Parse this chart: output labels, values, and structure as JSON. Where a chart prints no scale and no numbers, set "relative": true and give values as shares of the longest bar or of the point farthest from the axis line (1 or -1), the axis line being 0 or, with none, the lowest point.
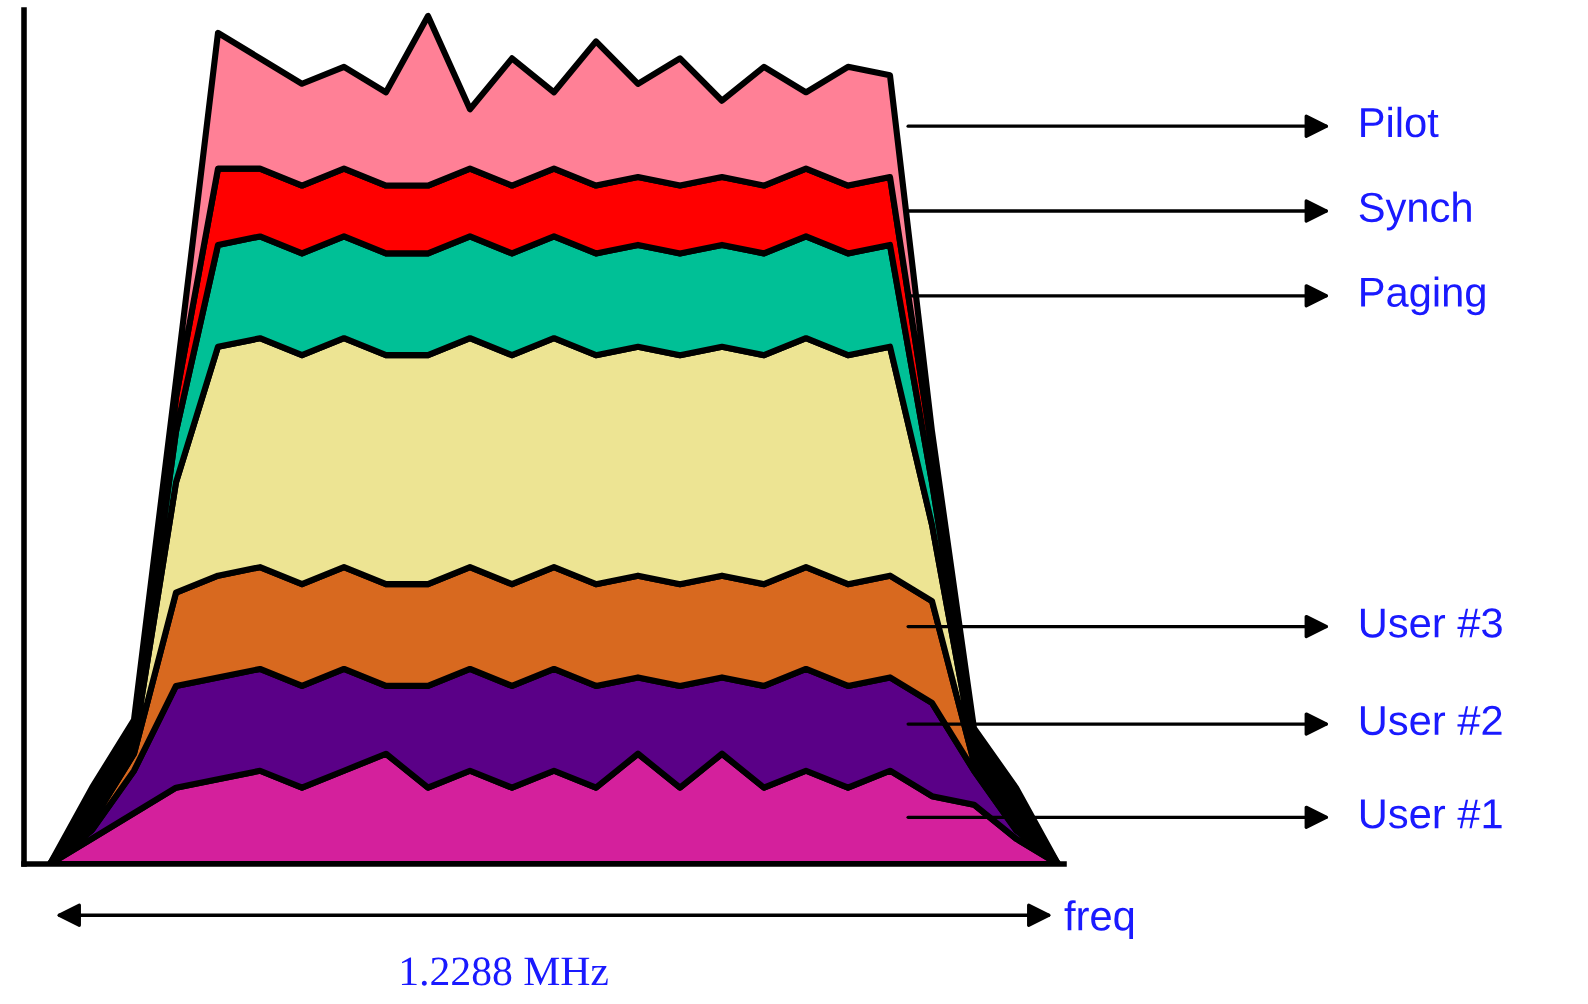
{
  "chart_data": {
    "type": "area",
    "stacked": true,
    "relative": true,
    "tick_labels": false,
    "xlabel": "freq",
    "annotations": [
      "1.2288 MHz"
    ],
    "categories": [
      null,
      null,
      null,
      null,
      null,
      null,
      null,
      null,
      null,
      null,
      null,
      null,
      null,
      null,
      null,
      null,
      null,
      null,
      null,
      null,
      null,
      null,
      null,
      null,
      null
    ],
    "series": [
      {
        "name": "User #1",
        "color": "#d4209c",
        "values": [
          0,
          0.03,
          0.06,
          0.09,
          0.1,
          0.11,
          0.09,
          0.11,
          0.13,
          0.09,
          0.11,
          0.09,
          0.11,
          0.09,
          0.13,
          0.09,
          0.13,
          0.09,
          0.11,
          0.09,
          0.11,
          0.08,
          0.07,
          0.03,
          0
        ]
      },
      {
        "name": "User #2",
        "color": "#5a0087",
        "values": [
          0,
          0.01,
          0.05,
          0.12,
          0.12,
          0.12,
          0.12,
          0.12,
          0.08,
          0.12,
          0.12,
          0.12,
          0.12,
          0.12,
          0.09,
          0.12,
          0.09,
          0.12,
          0.12,
          0.12,
          0.11,
          0.11,
          0.04,
          0.01,
          0
        ]
      },
      {
        "name": "User #3",
        "color": "#d8691f",
        "values": [
          0,
          0.01,
          0.02,
          0.11,
          0.12,
          0.12,
          0.12,
          0.12,
          0.12,
          0.12,
          0.12,
          0.12,
          0.12,
          0.12,
          0.12,
          0.12,
          0.12,
          0.12,
          0.12,
          0.12,
          0.12,
          0.12,
          0.01,
          0.01,
          0
        ]
      },
      {
        "color": "#ede493",
        "values": [
          0,
          0.01,
          0.01,
          0.13,
          0.27,
          0.27,
          0.27,
          0.27,
          0.27,
          0.27,
          0.27,
          0.27,
          0.27,
          0.27,
          0.27,
          0.27,
          0.27,
          0.27,
          0.27,
          0.27,
          0.27,
          0.09,
          0.01,
          0.01,
          0
        ]
      },
      {
        "name": "Paging",
        "color": "#00c096",
        "values": [
          0,
          0.01,
          0.01,
          0.06,
          0.12,
          0.12,
          0.12,
          0.12,
          0.12,
          0.12,
          0.12,
          0.12,
          0.12,
          0.12,
          0.12,
          0.12,
          0.12,
          0.12,
          0.12,
          0.12,
          0.12,
          0.05,
          0.01,
          0.01,
          0
        ]
      },
      {
        "name": "Synch",
        "color": "#ff0000",
        "values": [
          0,
          0.01,
          0.01,
          0.04,
          0.09,
          0.08,
          0.08,
          0.08,
          0.08,
          0.08,
          0.08,
          0.08,
          0.08,
          0.08,
          0.08,
          0.08,
          0.08,
          0.08,
          0.08,
          0.08,
          0.08,
          0.04,
          0.01,
          0.01,
          0
        ]
      },
      {
        "name": "Pilot",
        "color": "#ff8096",
        "values": [
          0,
          0.01,
          0.01,
          0.02,
          0.16,
          0.13,
          0.12,
          0.12,
          0.11,
          0.2,
          0.07,
          0.15,
          0.09,
          0.17,
          0.11,
          0.15,
          0.09,
          0.14,
          0.09,
          0.14,
          0.12,
          0.02,
          0.01,
          0.01,
          0
        ]
      }
    ]
  }
}
